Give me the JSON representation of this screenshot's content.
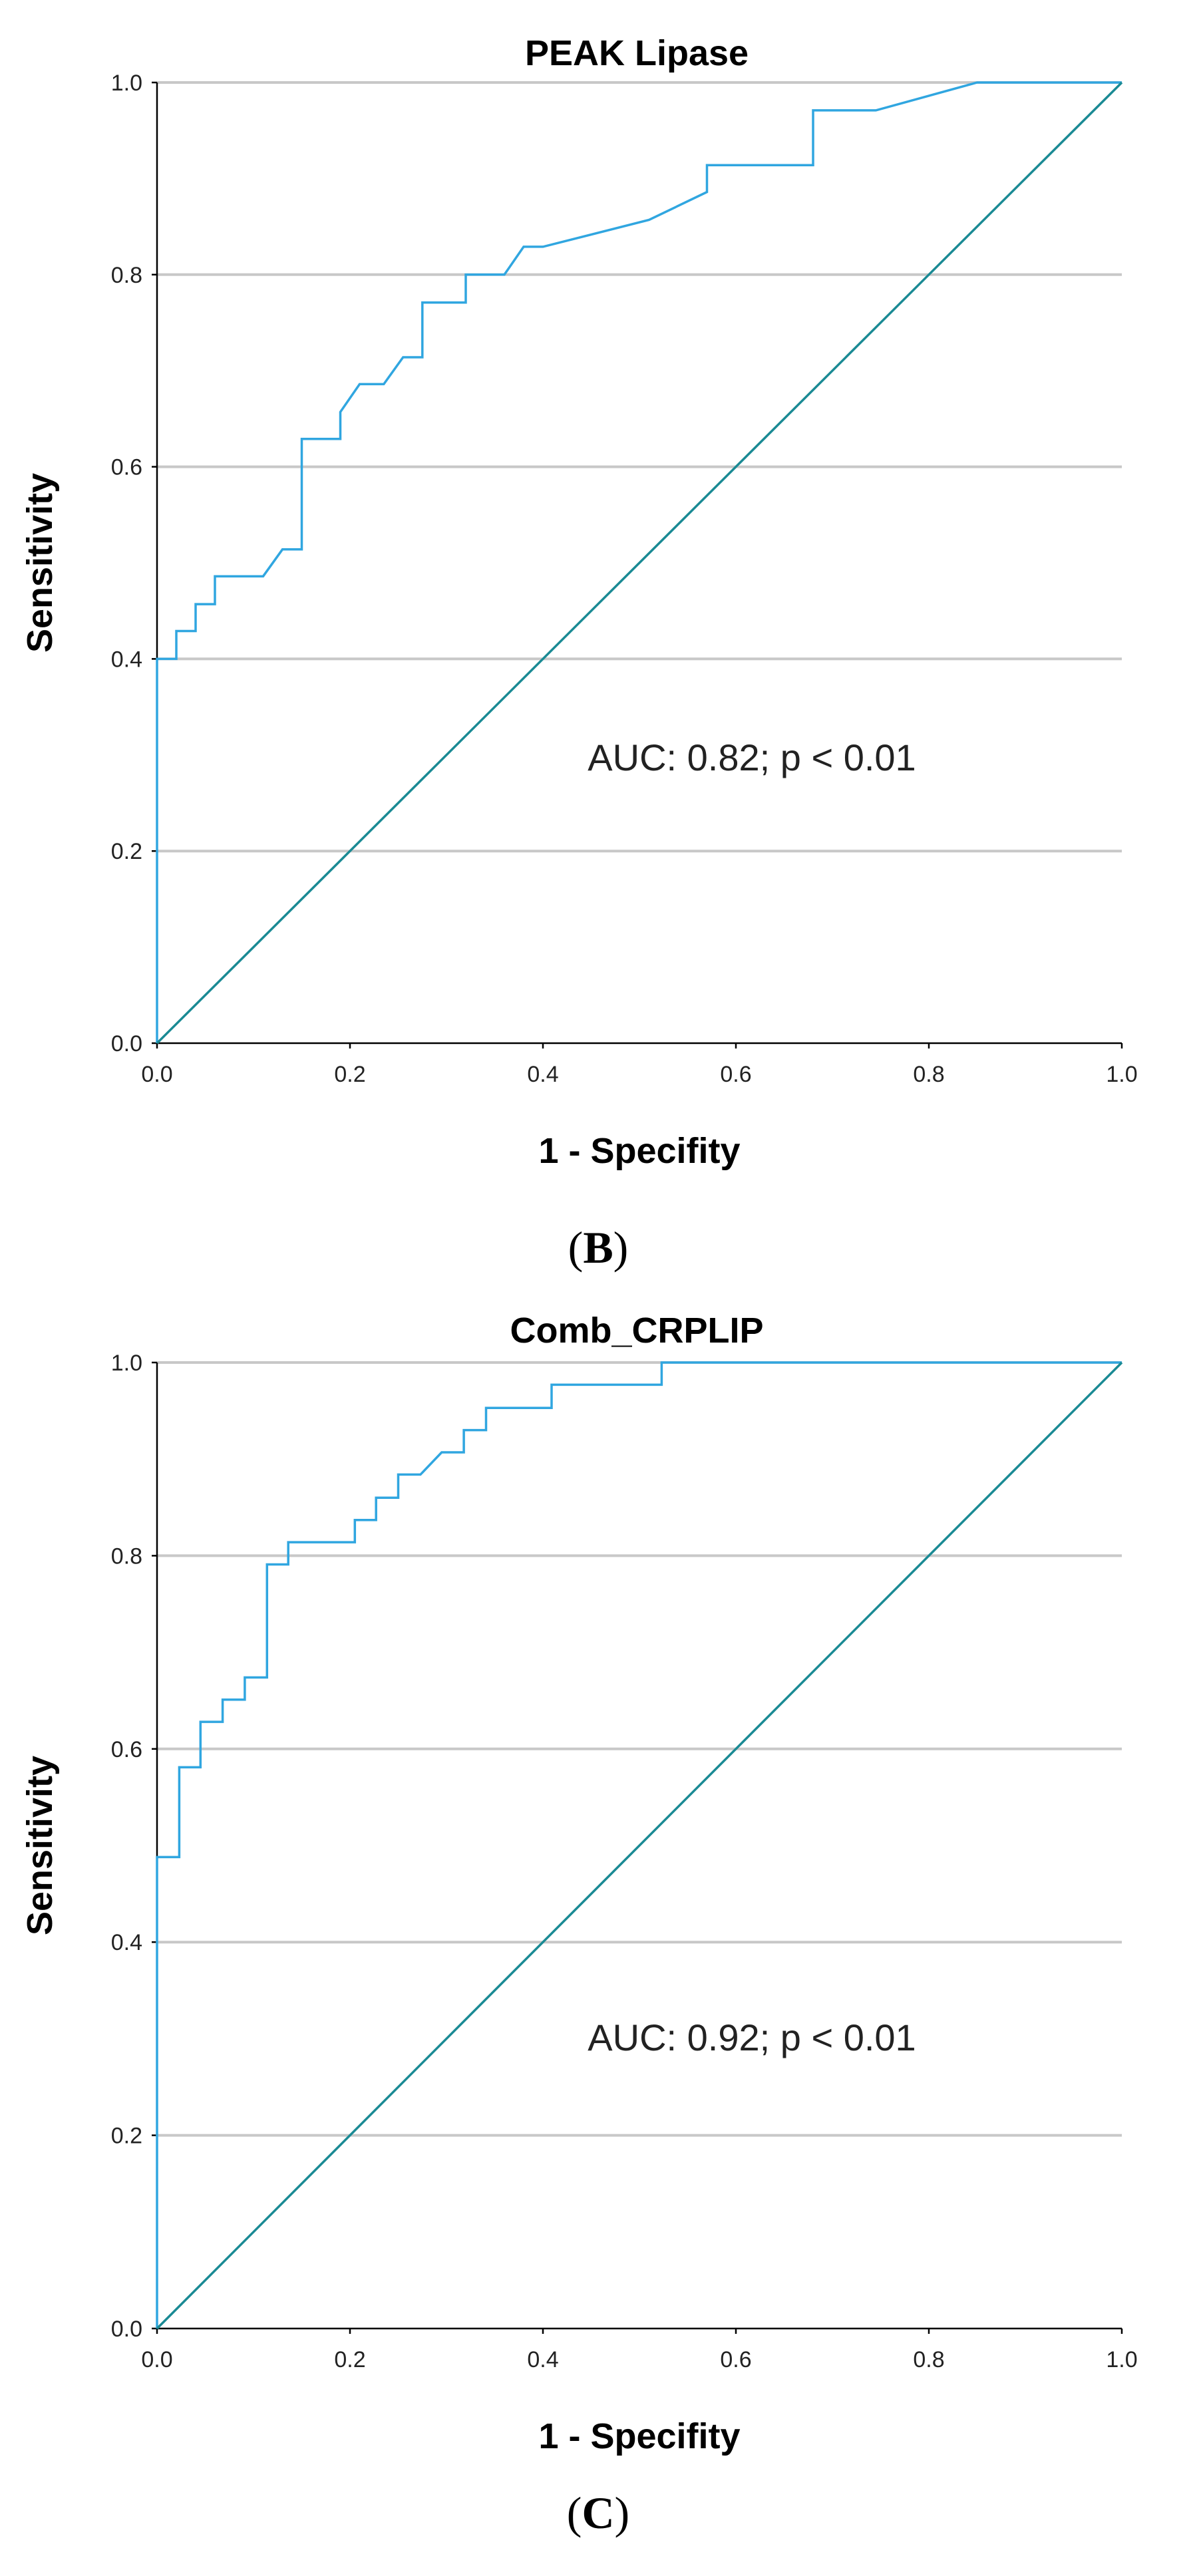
{
  "chart_data": [
    {
      "type": "line",
      "title": "PEAK Lipase",
      "xlabel": "1 - Specifity",
      "ylabel": "Sensitivity",
      "xlim": [
        0,
        1
      ],
      "ylim": [
        0,
        1
      ],
      "grid": true,
      "x_ticks": [
        "0.0",
        "0.2",
        "0.4",
        "0.6",
        "0.8",
        "1.0"
      ],
      "y_ticks": [
        "0.0",
        "0.2",
        "0.4",
        "0.6",
        "0.8",
        "1.0"
      ],
      "annotation": "AUC: 0.82; p < 0.01",
      "panel_label": {
        "open": "(",
        "letter": "B",
        "close": ")"
      },
      "series": [
        {
          "name": "ROC",
          "color": "#30a6e0",
          "points": [
            [
              0,
              0
            ],
            [
              0,
              0.4
            ],
            [
              0.02,
              0.4
            ],
            [
              0.02,
              0.429
            ],
            [
              0.04,
              0.429
            ],
            [
              0.04,
              0.457
            ],
            [
              0.06,
              0.457
            ],
            [
              0.06,
              0.486
            ],
            [
              0.11,
              0.486
            ],
            [
              0.13,
              0.514
            ],
            [
              0.15,
              0.514
            ],
            [
              0.15,
              0.629
            ],
            [
              0.19,
              0.629
            ],
            [
              0.19,
              0.657
            ],
            [
              0.21,
              0.686
            ],
            [
              0.235,
              0.686
            ],
            [
              0.255,
              0.714
            ],
            [
              0.275,
              0.714
            ],
            [
              0.275,
              0.771
            ],
            [
              0.32,
              0.771
            ],
            [
              0.32,
              0.8
            ],
            [
              0.36,
              0.8
            ],
            [
              0.38,
              0.829
            ],
            [
              0.4,
              0.829
            ],
            [
              0.51,
              0.857
            ],
            [
              0.57,
              0.886
            ],
            [
              0.57,
              0.914
            ],
            [
              0.68,
              0.914
            ],
            [
              0.68,
              0.971
            ],
            [
              0.745,
              0.971
            ],
            [
              0.85,
              1.0
            ],
            [
              1.0,
              1.0
            ]
          ]
        },
        {
          "name": "Reference",
          "color": "#1a8a94",
          "points": [
            [
              0,
              0
            ],
            [
              1,
              1
            ]
          ]
        }
      ]
    },
    {
      "type": "line",
      "title": "Comb_CRPLIP",
      "xlabel": "1 - Specifity",
      "ylabel": "Sensitivity",
      "xlim": [
        0,
        1
      ],
      "ylim": [
        0,
        1
      ],
      "grid": true,
      "x_ticks": [
        "0.0",
        "0.2",
        "0.4",
        "0.6",
        "0.8",
        "1.0"
      ],
      "y_ticks": [
        "0.0",
        "0.2",
        "0.4",
        "0.6",
        "0.8",
        "1.0"
      ],
      "annotation": "AUC: 0.92; p < 0.01",
      "panel_label": {
        "open": "(",
        "letter": "C",
        "close": ")"
      },
      "series": [
        {
          "name": "ROC",
          "color": "#30a6e0",
          "points": [
            [
              0,
              0
            ],
            [
              0,
              0.488
            ],
            [
              0.023,
              0.488
            ],
            [
              0.023,
              0.581
            ],
            [
              0.045,
              0.581
            ],
            [
              0.045,
              0.628
            ],
            [
              0.068,
              0.628
            ],
            [
              0.068,
              0.651
            ],
            [
              0.091,
              0.651
            ],
            [
              0.091,
              0.674
            ],
            [
              0.114,
              0.674
            ],
            [
              0.114,
              0.791
            ],
            [
              0.136,
              0.791
            ],
            [
              0.136,
              0.814
            ],
            [
              0.205,
              0.814
            ],
            [
              0.205,
              0.837
            ],
            [
              0.227,
              0.837
            ],
            [
              0.227,
              0.86
            ],
            [
              0.25,
              0.86
            ],
            [
              0.25,
              0.884
            ],
            [
              0.273,
              0.884
            ],
            [
              0.295,
              0.907
            ],
            [
              0.318,
              0.907
            ],
            [
              0.318,
              0.93
            ],
            [
              0.341,
              0.93
            ],
            [
              0.341,
              0.953
            ],
            [
              0.409,
              0.953
            ],
            [
              0.409,
              0.977
            ],
            [
              0.523,
              0.977
            ],
            [
              0.523,
              1.0
            ],
            [
              1.0,
              1.0
            ]
          ]
        },
        {
          "name": "Reference",
          "color": "#1a8a94",
          "points": [
            [
              0,
              0
            ],
            [
              1,
              1
            ]
          ]
        }
      ]
    }
  ]
}
